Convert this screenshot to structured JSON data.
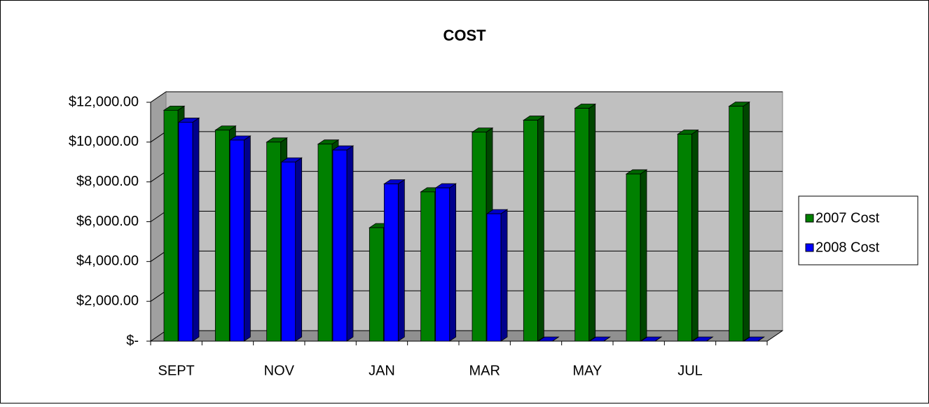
{
  "chart_data": {
    "type": "bar3d",
    "title": "COST",
    "categories": [
      "SEPT",
      null,
      "NOV",
      null,
      "JAN",
      null,
      "MAR",
      null,
      "MAY",
      null,
      "JUL",
      null
    ],
    "series": [
      {
        "name": "2007 Cost",
        "color": "#008000",
        "values": [
          11600,
          10600,
          10000,
          9900,
          5700,
          7500,
          10500,
          11100,
          11700,
          8400,
          10400,
          11800
        ]
      },
      {
        "name": "2008 Cost",
        "color": "#0000ff",
        "values": [
          11000,
          10100,
          9000,
          9600,
          7900,
          7700,
          6400,
          0,
          0,
          0,
          0,
          0
        ]
      }
    ],
    "ylim": [
      0,
      12000
    ],
    "yticks": [
      {
        "value": 0,
        "label": "$-"
      },
      {
        "value": 2000,
        "label": "$2,000.00"
      },
      {
        "value": 4000,
        "label": "$4,000.00"
      },
      {
        "value": 6000,
        "label": "$6,000.00"
      },
      {
        "value": 8000,
        "label": "$8,000.00"
      },
      {
        "value": 10000,
        "label": "$10,000.00"
      },
      {
        "value": 12000,
        "label": "$12,000.00"
      }
    ],
    "grid": true,
    "legend": "right"
  }
}
